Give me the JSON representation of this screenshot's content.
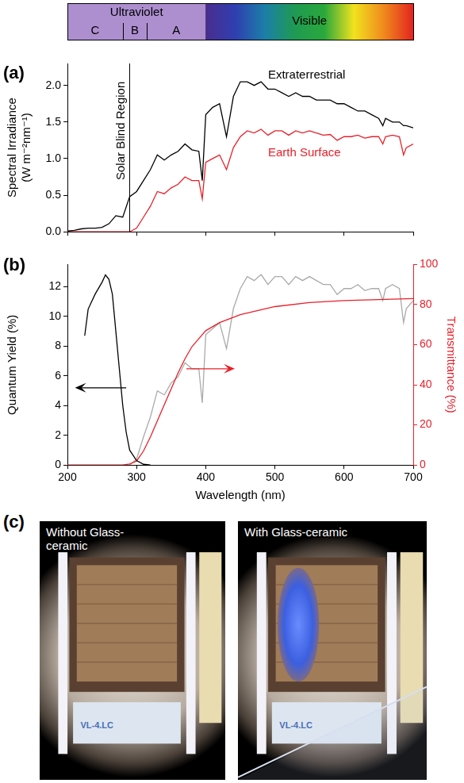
{
  "spectrum_bar": {
    "xlim": [
      200,
      700
    ],
    "regions": [
      {
        "label": "Ultraviolet",
        "from": 200,
        "to": 400,
        "color": "#ad8fd0"
      },
      {
        "label": "Visible",
        "from": 400,
        "to": 700,
        "colors": [
          "#4a2d8f",
          "#2f3fb0",
          "#1c7fa8",
          "#1f9a52",
          "#2aa83c",
          "#f2e21e",
          "#f08a1e",
          "#e3241f"
        ]
      }
    ],
    "bands": [
      {
        "label": "C",
        "from": 200,
        "to": 280
      },
      {
        "label": "B",
        "from": 280,
        "to": 315
      },
      {
        "label": "A",
        "from": 315,
        "to": 400
      }
    ]
  },
  "chart_data": [
    {
      "type": "line",
      "label": "(a)",
      "ylabel": "Spectral Irradiance (W m⁻²nm⁻¹)",
      "x": [
        200,
        210,
        220,
        230,
        240,
        250,
        260,
        270,
        280,
        290,
        300,
        310,
        320,
        330,
        340,
        350,
        360,
        370,
        380,
        390,
        395,
        400,
        410,
        420,
        430,
        440,
        450,
        460,
        470,
        480,
        490,
        500,
        510,
        520,
        530,
        540,
        550,
        560,
        570,
        580,
        590,
        600,
        610,
        620,
        630,
        640,
        650,
        656,
        660,
        670,
        680,
        686,
        690,
        700
      ],
      "series": [
        {
          "name": "Extraterrestrial",
          "color": "#000000",
          "values": [
            0.01,
            0.02,
            0.04,
            0.05,
            0.05,
            0.06,
            0.11,
            0.22,
            0.2,
            0.48,
            0.55,
            0.7,
            0.85,
            1.05,
            0.98,
            1.05,
            1.1,
            1.2,
            1.12,
            1.1,
            0.7,
            1.6,
            1.7,
            1.75,
            1.3,
            1.85,
            2.05,
            2.05,
            2.0,
            2.05,
            1.95,
            1.95,
            1.9,
            1.85,
            1.9,
            1.85,
            1.85,
            1.8,
            1.8,
            1.8,
            1.75,
            1.75,
            1.7,
            1.65,
            1.65,
            1.6,
            1.55,
            1.45,
            1.55,
            1.5,
            1.5,
            1.45,
            1.45,
            1.42
          ]
        },
        {
          "name": "Earth Surface",
          "color": "#e8202a",
          "values": [
            0,
            0,
            0,
            0,
            0,
            0,
            0,
            0,
            0,
            0,
            0.05,
            0.2,
            0.35,
            0.55,
            0.52,
            0.6,
            0.65,
            0.75,
            0.7,
            0.7,
            0.45,
            0.95,
            1.0,
            1.05,
            0.85,
            1.15,
            1.3,
            1.38,
            1.35,
            1.4,
            1.32,
            1.38,
            1.38,
            1.32,
            1.38,
            1.35,
            1.38,
            1.35,
            1.32,
            1.33,
            1.25,
            1.3,
            1.3,
            1.32,
            1.28,
            1.3,
            1.3,
            1.2,
            1.3,
            1.32,
            1.3,
            1.05,
            1.15,
            1.2
          ]
        }
      ],
      "xlim": [
        200,
        700
      ],
      "xticks": [
        200,
        300,
        400,
        500,
        600,
        700
      ],
      "ylim": [
        0,
        2.3
      ],
      "yticks": [
        {
          "value": 0,
          "label": "0.0"
        },
        {
          "value": 0.5,
          "label": "0.5"
        },
        {
          "value": 1,
          "label": "1.0"
        },
        {
          "value": 1.5,
          "label": "1.5"
        },
        {
          "value": 2,
          "label": "2.0"
        }
      ],
      "tick_labels": "y",
      "grid": false,
      "annotations": [
        {
          "text": "Solar Blind Region",
          "x": 290
        }
      ]
    },
    {
      "type": "line",
      "label": "(b)",
      "xlabel": "Wavelength (nm)",
      "ylabel": "Quantum Yield (%)",
      "y2label": "Transmittance (%)",
      "series": [
        {
          "color": "#000000",
          "axis": "y",
          "x": [
            225,
            230,
            240,
            250,
            255,
            260,
            265,
            270,
            275,
            280,
            285,
            290,
            300,
            310,
            320
          ],
          "values": [
            8.7,
            10.5,
            11.5,
            12.3,
            12.8,
            12.5,
            11.5,
            9,
            6.5,
            4,
            2.2,
            1,
            0.3,
            0.05,
            0
          ]
        },
        {
          "color": "#e8202a",
          "axis": "y2",
          "x": [
            200,
            280,
            290,
            300,
            310,
            320,
            330,
            340,
            350,
            360,
            370,
            380,
            390,
            400,
            420,
            450,
            500,
            550,
            600,
            650,
            700
          ],
          "values": [
            0,
            0,
            0.5,
            2,
            7,
            14,
            22,
            30,
            38,
            46,
            53,
            59,
            63,
            67,
            71,
            75,
            79,
            81,
            82,
            82.5,
            83
          ]
        },
        {
          "color": "#aaaaaa",
          "axis": "y2",
          "x": [
            290,
            300,
            310,
            320,
            330,
            340,
            350,
            360,
            370,
            380,
            390,
            395,
            400,
            410,
            420,
            430,
            440,
            450,
            460,
            470,
            480,
            490,
            500,
            510,
            520,
            530,
            540,
            550,
            560,
            570,
            580,
            590,
            600,
            610,
            620,
            630,
            640,
            650,
            656,
            660,
            670,
            680,
            686,
            690,
            700
          ],
          "values": [
            0,
            3,
            14,
            24,
            37,
            35,
            41,
            44,
            51,
            48,
            48,
            31,
            65,
            68,
            71,
            58,
            78,
            88,
            94,
            92,
            95,
            90,
            94,
            94,
            90,
            94,
            92,
            94,
            92,
            90,
            90,
            85,
            88,
            88,
            90,
            87,
            88,
            88,
            82,
            88,
            90,
            88,
            71,
            78,
            82
          ]
        }
      ],
      "xlim": [
        200,
        700
      ],
      "xticks": [
        200,
        300,
        400,
        500,
        600,
        700
      ],
      "ylim": [
        0,
        13.5
      ],
      "yticks": [
        0,
        2,
        4,
        6,
        8,
        10,
        12
      ],
      "y2lim": [
        0,
        100
      ],
      "y2ticks": [
        0,
        20,
        40,
        60,
        80,
        100
      ],
      "grid": false
    }
  ],
  "photos": {
    "label": "(c)",
    "panels": [
      {
        "title": "Without Glass-ceramic",
        "lamp_text": "VL-4.LC"
      },
      {
        "title": "With Glass-ceramic",
        "lamp_text": "VL-4.LC"
      }
    ]
  }
}
